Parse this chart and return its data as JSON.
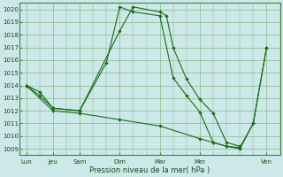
{
  "title": "Pression niveau de la mer( hPa )",
  "bg_color": "#cce8e8",
  "grid_color": "#88bb88",
  "line_color": "#1a6b1a",
  "marker_color": "#1a6b1a",
  "ylim_min": 1008.5,
  "ylim_max": 1020.5,
  "yticks": [
    1009,
    1010,
    1011,
    1012,
    1013,
    1014,
    1015,
    1016,
    1017,
    1018,
    1019,
    1020
  ],
  "day_labels": [
    "Lun",
    "Jeu",
    "Sam",
    "Dim",
    "Mar",
    "Mer",
    "Ven"
  ],
  "day_positions": [
    0,
    2,
    4,
    7,
    10,
    13,
    18
  ],
  "xlim_min": -0.5,
  "xlim_max": 19,
  "line1_x": [
    0,
    1,
    2,
    4,
    7,
    8,
    10,
    10.5,
    11,
    12,
    13,
    14,
    15,
    16
  ],
  "line1_y": [
    1014.0,
    1013.5,
    1012.2,
    1012.0,
    1018.3,
    1020.2,
    1019.8,
    1019.5,
    1017.0,
    1014.5,
    1012.9,
    1011.8,
    1009.5,
    1009.2
  ],
  "line2_x": [
    0,
    1,
    2,
    4,
    6,
    7,
    8,
    10,
    11,
    12,
    13,
    14,
    15,
    16,
    17,
    18
  ],
  "line2_y": [
    1014.0,
    1013.2,
    1012.2,
    1012.0,
    1015.8,
    1020.2,
    1019.8,
    1019.5,
    1014.6,
    1013.2,
    1011.9,
    1009.5,
    1009.2,
    1009.1,
    1011.0,
    1017.0
  ],
  "line3_x": [
    0,
    2,
    4,
    7,
    10,
    13,
    14,
    15,
    16,
    17,
    18
  ],
  "line3_y": [
    1014.0,
    1012.0,
    1011.8,
    1011.3,
    1010.8,
    1009.8,
    1009.5,
    1009.2,
    1009.0,
    1011.0,
    1017.0
  ],
  "ylabel_fontsize": 5.5,
  "xlabel_fontsize": 6,
  "tick_fontsize": 5
}
